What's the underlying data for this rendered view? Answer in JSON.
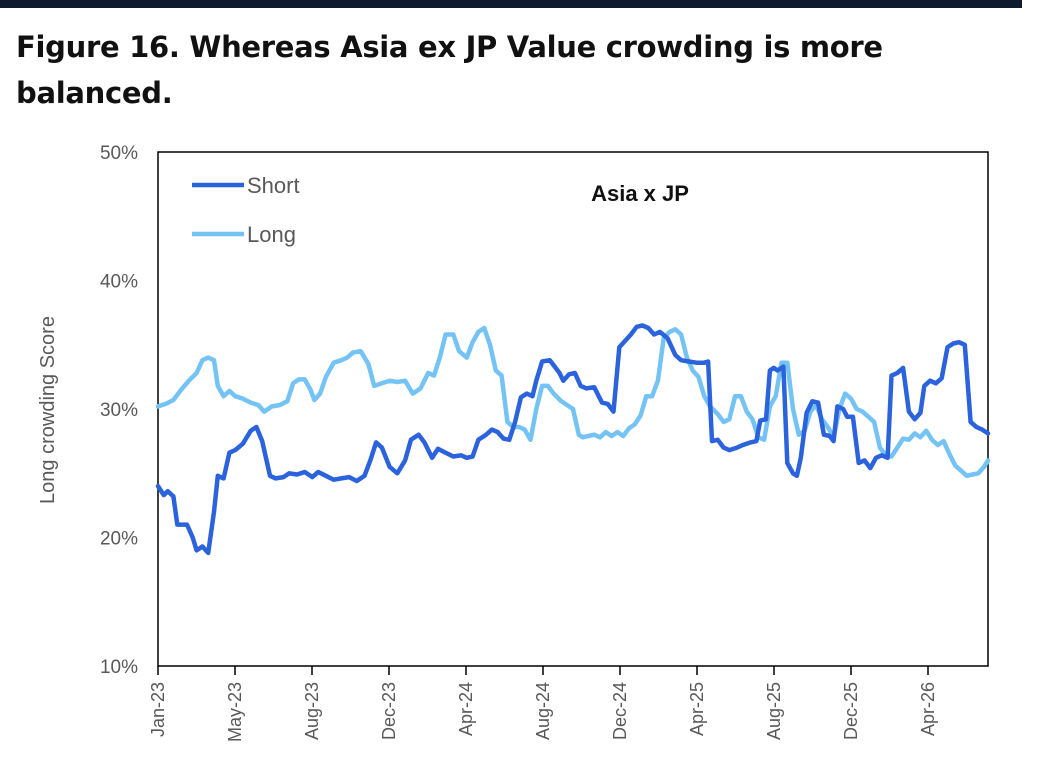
{
  "figure_title": "Figure 16. Whereas Asia ex JP Value crowding is more balanced.",
  "colors": {
    "short": "#2b63dc",
    "long": "#74c3f5",
    "axis": "#000000",
    "text": "#595959",
    "top_bar": "#0f1a2e"
  },
  "chart_data": {
    "type": "line",
    "title": "Asia x JP",
    "xlabel": "",
    "ylabel": "Long crowding Score",
    "ylim": [
      0.1,
      0.5
    ],
    "yticks": [
      "10%",
      "20%",
      "30%",
      "40%",
      "50%"
    ],
    "xlim": [
      0,
      43
    ],
    "xticks": [
      "Jan-23",
      "May-23",
      "Aug-23",
      "Dec-23",
      "Apr-24",
      "Aug-24",
      "Dec-24",
      "Apr-25",
      "Aug-25",
      "Dec-25",
      "Apr-26"
    ],
    "legend": "top-left",
    "grid": false,
    "series": [
      {
        "name": "Short",
        "points": [
          [
            0,
            0.24
          ],
          [
            0.3,
            0.233
          ],
          [
            0.5,
            0.236
          ],
          [
            0.8,
            0.232
          ],
          [
            1.0,
            0.21
          ],
          [
            1.5,
            0.21
          ],
          [
            1.8,
            0.2
          ],
          [
            2.0,
            0.19
          ],
          [
            2.3,
            0.193
          ],
          [
            2.6,
            0.188
          ],
          [
            2.9,
            0.22
          ],
          [
            3.1,
            0.248
          ],
          [
            3.4,
            0.246
          ],
          [
            3.7,
            0.266
          ],
          [
            4.0,
            0.268
          ],
          [
            4.4,
            0.273
          ],
          [
            4.8,
            0.283
          ],
          [
            5.1,
            0.286
          ],
          [
            5.4,
            0.275
          ],
          [
            5.8,
            0.248
          ],
          [
            6.1,
            0.246
          ],
          [
            6.5,
            0.247
          ],
          [
            6.8,
            0.25
          ],
          [
            7.2,
            0.249
          ],
          [
            7.6,
            0.251
          ],
          [
            8.0,
            0.247
          ],
          [
            8.3,
            0.251
          ],
          [
            8.7,
            0.248
          ],
          [
            9.1,
            0.245
          ],
          [
            9.5,
            0.246
          ],
          [
            9.9,
            0.247
          ],
          [
            10.3,
            0.244
          ],
          [
            10.7,
            0.248
          ],
          [
            11.0,
            0.26
          ],
          [
            11.3,
            0.274
          ],
          [
            11.6,
            0.27
          ],
          [
            12.0,
            0.255
          ],
          [
            12.4,
            0.25
          ],
          [
            12.8,
            0.26
          ],
          [
            13.1,
            0.276
          ],
          [
            13.5,
            0.28
          ],
          [
            13.8,
            0.274
          ],
          [
            14.2,
            0.262
          ],
          [
            14.5,
            0.269
          ],
          [
            14.9,
            0.266
          ],
          [
            15.3,
            0.263
          ],
          [
            15.7,
            0.264
          ],
          [
            16.0,
            0.262
          ],
          [
            16.3,
            0.263
          ],
          [
            16.6,
            0.276
          ],
          [
            17.0,
            0.28
          ],
          [
            17.3,
            0.284
          ],
          [
            17.6,
            0.282
          ],
          [
            17.9,
            0.277
          ],
          [
            18.2,
            0.276
          ],
          [
            18.5,
            0.29
          ],
          [
            18.8,
            0.309
          ],
          [
            19.1,
            0.312
          ],
          [
            19.4,
            0.31
          ],
          [
            19.6,
            0.322
          ],
          [
            19.9,
            0.337
          ],
          [
            20.3,
            0.338
          ],
          [
            20.5,
            0.334
          ],
          [
            20.8,
            0.328
          ],
          [
            21.0,
            0.322
          ],
          [
            21.3,
            0.327
          ],
          [
            21.6,
            0.328
          ],
          [
            21.9,
            0.318
          ],
          [
            22.2,
            0.316
          ],
          [
            22.6,
            0.317
          ],
          [
            23.0,
            0.305
          ],
          [
            23.3,
            0.304
          ],
          [
            23.6,
            0.298
          ],
          [
            23.9,
            0.348
          ],
          [
            24.2,
            0.353
          ],
          [
            24.5,
            0.358
          ],
          [
            24.8,
            0.364
          ],
          [
            25.1,
            0.365
          ],
          [
            25.4,
            0.363
          ],
          [
            25.7,
            0.358
          ],
          [
            26.0,
            0.36
          ],
          [
            26.4,
            0.355
          ],
          [
            26.8,
            0.342
          ],
          [
            27.1,
            0.338
          ],
          [
            27.5,
            0.337
          ],
          [
            27.9,
            0.336
          ],
          [
            28.3,
            0.336
          ],
          [
            28.5,
            0.337
          ],
          [
            28.7,
            0.275
          ],
          [
            29.0,
            0.276
          ],
          [
            29.3,
            0.27
          ],
          [
            29.6,
            0.268
          ],
          [
            30.0,
            0.27
          ],
          [
            30.3,
            0.272
          ],
          [
            30.7,
            0.274
          ],
          [
            31.0,
            0.275
          ],
          [
            31.2,
            0.291
          ],
          [
            31.5,
            0.292
          ],
          [
            31.7,
            0.33
          ],
          [
            31.9,
            0.332
          ],
          [
            32.1,
            0.33
          ],
          [
            32.4,
            0.333
          ],
          [
            32.6,
            0.258
          ],
          [
            32.9,
            0.25
          ],
          [
            33.1,
            0.248
          ],
          [
            33.3,
            0.262
          ],
          [
            33.6,
            0.297
          ],
          [
            33.9,
            0.306
          ],
          [
            34.2,
            0.305
          ],
          [
            34.5,
            0.28
          ],
          [
            34.8,
            0.279
          ],
          [
            35.0,
            0.275
          ],
          [
            35.2,
            0.302
          ],
          [
            35.5,
            0.3
          ],
          [
            35.7,
            0.294
          ],
          [
            36.0,
            0.294
          ],
          [
            36.3,
            0.258
          ],
          [
            36.6,
            0.26
          ],
          [
            36.9,
            0.254
          ],
          [
            37.2,
            0.262
          ],
          [
            37.5,
            0.264
          ],
          [
            37.8,
            0.262
          ],
          [
            38.0,
            0.326
          ],
          [
            38.3,
            0.328
          ],
          [
            38.6,
            0.332
          ],
          [
            38.9,
            0.298
          ],
          [
            39.2,
            0.292
          ],
          [
            39.5,
            0.297
          ],
          [
            39.7,
            0.318
          ],
          [
            40.0,
            0.322
          ],
          [
            40.3,
            0.32
          ],
          [
            40.6,
            0.324
          ],
          [
            40.9,
            0.348
          ],
          [
            41.2,
            0.351
          ],
          [
            41.5,
            0.352
          ],
          [
            41.8,
            0.35
          ],
          [
            42.1,
            0.29
          ],
          [
            42.4,
            0.286
          ],
          [
            42.7,
            0.284
          ],
          [
            43.0,
            0.281
          ]
        ]
      },
      {
        "name": "Long",
        "points": [
          [
            0,
            0.302
          ],
          [
            0.4,
            0.304
          ],
          [
            0.8,
            0.307
          ],
          [
            1.2,
            0.315
          ],
          [
            1.6,
            0.322
          ],
          [
            2.0,
            0.328
          ],
          [
            2.3,
            0.338
          ],
          [
            2.6,
            0.34
          ],
          [
            2.9,
            0.338
          ],
          [
            3.1,
            0.318
          ],
          [
            3.4,
            0.31
          ],
          [
            3.7,
            0.314
          ],
          [
            4.0,
            0.31
          ],
          [
            4.4,
            0.308
          ],
          [
            4.8,
            0.305
          ],
          [
            5.2,
            0.303
          ],
          [
            5.5,
            0.298
          ],
          [
            5.9,
            0.302
          ],
          [
            6.3,
            0.303
          ],
          [
            6.7,
            0.306
          ],
          [
            7.0,
            0.32
          ],
          [
            7.3,
            0.323
          ],
          [
            7.6,
            0.323
          ],
          [
            7.9,
            0.315
          ],
          [
            8.1,
            0.307
          ],
          [
            8.4,
            0.312
          ],
          [
            8.7,
            0.325
          ],
          [
            9.1,
            0.336
          ],
          [
            9.5,
            0.338
          ],
          [
            9.8,
            0.34
          ],
          [
            10.1,
            0.344
          ],
          [
            10.5,
            0.345
          ],
          [
            10.9,
            0.335
          ],
          [
            11.2,
            0.318
          ],
          [
            11.6,
            0.32
          ],
          [
            12.0,
            0.322
          ],
          [
            12.4,
            0.321
          ],
          [
            12.8,
            0.322
          ],
          [
            13.2,
            0.312
          ],
          [
            13.6,
            0.316
          ],
          [
            14.0,
            0.328
          ],
          [
            14.3,
            0.326
          ],
          [
            14.6,
            0.34
          ],
          [
            14.9,
            0.358
          ],
          [
            15.3,
            0.358
          ],
          [
            15.6,
            0.345
          ],
          [
            16.0,
            0.34
          ],
          [
            16.3,
            0.352
          ],
          [
            16.6,
            0.36
          ],
          [
            16.9,
            0.363
          ],
          [
            17.2,
            0.35
          ],
          [
            17.5,
            0.33
          ],
          [
            17.8,
            0.326
          ],
          [
            18.1,
            0.29
          ],
          [
            18.4,
            0.286
          ],
          [
            18.7,
            0.286
          ],
          [
            19.0,
            0.284
          ],
          [
            19.3,
            0.276
          ],
          [
            19.6,
            0.3
          ],
          [
            19.9,
            0.318
          ],
          [
            20.2,
            0.318
          ],
          [
            20.5,
            0.312
          ],
          [
            20.9,
            0.306
          ],
          [
            21.2,
            0.303
          ],
          [
            21.5,
            0.3
          ],
          [
            21.8,
            0.28
          ],
          [
            22.0,
            0.278
          ],
          [
            22.3,
            0.279
          ],
          [
            22.6,
            0.28
          ],
          [
            22.9,
            0.278
          ],
          [
            23.2,
            0.282
          ],
          [
            23.5,
            0.279
          ],
          [
            23.8,
            0.282
          ],
          [
            24.1,
            0.279
          ],
          [
            24.4,
            0.285
          ],
          [
            24.7,
            0.288
          ],
          [
            25.0,
            0.295
          ],
          [
            25.3,
            0.31
          ],
          [
            25.6,
            0.31
          ],
          [
            25.9,
            0.322
          ],
          [
            26.2,
            0.355
          ],
          [
            26.5,
            0.36
          ],
          [
            26.8,
            0.362
          ],
          [
            27.1,
            0.358
          ],
          [
            27.4,
            0.34
          ],
          [
            27.7,
            0.33
          ],
          [
            28.0,
            0.325
          ],
          [
            28.3,
            0.31
          ],
          [
            28.6,
            0.302
          ],
          [
            29.0,
            0.296
          ],
          [
            29.3,
            0.29
          ],
          [
            29.6,
            0.292
          ],
          [
            29.9,
            0.31
          ],
          [
            30.2,
            0.31
          ],
          [
            30.5,
            0.298
          ],
          [
            30.8,
            0.292
          ],
          [
            31.1,
            0.278
          ],
          [
            31.4,
            0.276
          ],
          [
            31.7,
            0.302
          ],
          [
            32.0,
            0.31
          ],
          [
            32.3,
            0.336
          ],
          [
            32.6,
            0.336
          ],
          [
            32.9,
            0.3
          ],
          [
            33.2,
            0.28
          ],
          [
            33.5,
            0.283
          ],
          [
            33.8,
            0.298
          ],
          [
            34.1,
            0.303
          ],
          [
            34.4,
            0.292
          ],
          [
            34.7,
            0.286
          ],
          [
            35.0,
            0.278
          ],
          [
            35.3,
            0.3
          ],
          [
            35.6,
            0.312
          ],
          [
            35.9,
            0.308
          ],
          [
            36.2,
            0.3
          ],
          [
            36.5,
            0.298
          ],
          [
            36.8,
            0.294
          ],
          [
            37.1,
            0.29
          ],
          [
            37.4,
            0.27
          ],
          [
            37.7,
            0.264
          ],
          [
            38.0,
            0.263
          ],
          [
            38.3,
            0.27
          ],
          [
            38.6,
            0.277
          ],
          [
            38.9,
            0.276
          ],
          [
            39.2,
            0.281
          ],
          [
            39.5,
            0.278
          ],
          [
            39.8,
            0.283
          ],
          [
            40.1,
            0.276
          ],
          [
            40.4,
            0.272
          ],
          [
            40.7,
            0.275
          ],
          [
            41.0,
            0.265
          ],
          [
            41.3,
            0.256
          ],
          [
            41.6,
            0.252
          ],
          [
            41.9,
            0.248
          ],
          [
            42.2,
            0.249
          ],
          [
            42.5,
            0.25
          ],
          [
            42.8,
            0.255
          ],
          [
            43.0,
            0.26
          ]
        ]
      }
    ]
  }
}
